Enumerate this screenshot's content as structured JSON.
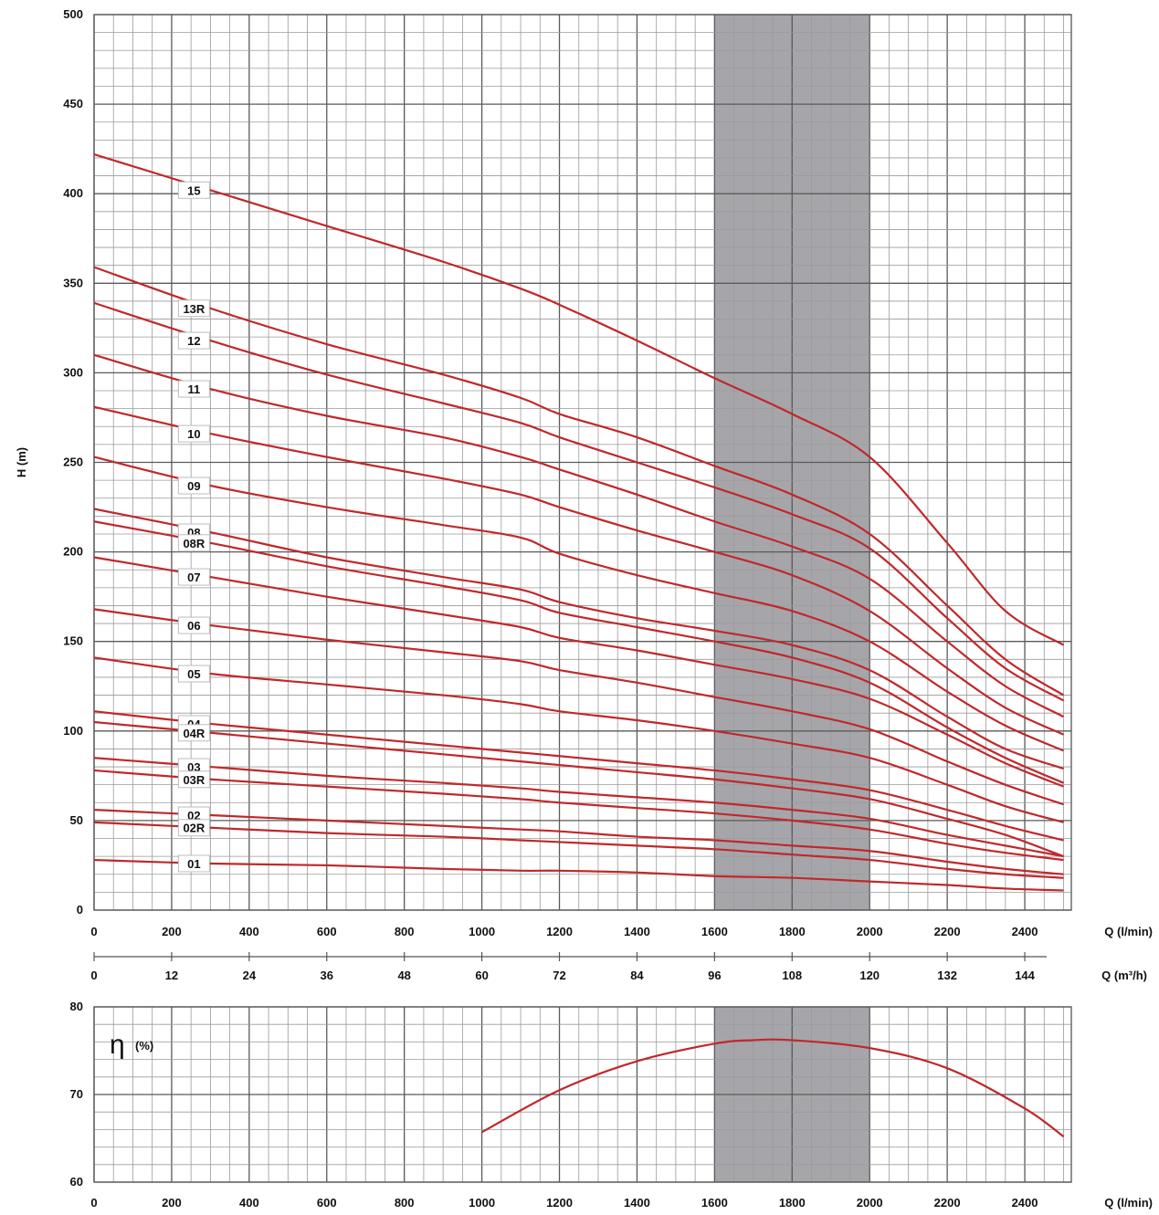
{
  "chart_data": [
    {
      "type": "line",
      "title": "",
      "xlabel": "Q (l/min)",
      "ylabel": "H (m)",
      "xlim": [
        0,
        2520
      ],
      "ylim": [
        0,
        500
      ],
      "grid": true,
      "x_ticks": [
        "0",
        "200",
        "400",
        "600",
        "800",
        "1000",
        "1200",
        "1400",
        "1600",
        "1800",
        "2000",
        "2200",
        "2400"
      ],
      "y_ticks": [
        "0",
        "50",
        "100",
        "150",
        "200",
        "250",
        "300",
        "350",
        "400",
        "450",
        "500"
      ],
      "secondary_x_label": "Q (m³/h)",
      "secondary_x_ticks": [
        "0",
        "12",
        "24",
        "36",
        "48",
        "60",
        "72",
        "84",
        "96",
        "108",
        "120",
        "132",
        "144"
      ],
      "highlight_range": [
        1600,
        2000
      ],
      "series_color": "#c0282b",
      "highlight_color": "#a6a6aa",
      "series": [
        {
          "name": "15",
          "points": [
            [
              0,
              422
            ],
            [
              300,
              402
            ],
            [
              600,
              382
            ],
            [
              900,
              362
            ],
            [
              1100,
              347
            ],
            [
              1200,
              338
            ],
            [
              1400,
              318
            ],
            [
              1600,
              297
            ],
            [
              1800,
              277
            ],
            [
              2000,
              253
            ],
            [
              2200,
              205
            ],
            [
              2350,
              167
            ],
            [
              2500,
              148
            ]
          ]
        },
        {
          "name": "13R",
          "points": [
            [
              0,
              359
            ],
            [
              300,
              336
            ],
            [
              600,
              316
            ],
            [
              900,
              299
            ],
            [
              1100,
              286
            ],
            [
              1200,
              277
            ],
            [
              1400,
              264
            ],
            [
              1600,
              248
            ],
            [
              1800,
              232
            ],
            [
              2000,
              210
            ],
            [
              2200,
              170
            ],
            [
              2350,
              140
            ],
            [
              2500,
              120
            ]
          ]
        },
        {
          "name": "12",
          "points": [
            [
              0,
              339
            ],
            [
              300,
              318
            ],
            [
              600,
              299
            ],
            [
              900,
              283
            ],
            [
              1100,
              272
            ],
            [
              1200,
              264
            ],
            [
              1400,
              250
            ],
            [
              1600,
              236
            ],
            [
              1800,
              221
            ],
            [
              2000,
              202
            ],
            [
              2200,
              163
            ],
            [
              2350,
              135
            ],
            [
              2500,
              117
            ]
          ]
        },
        {
          "name": "11",
          "points": [
            [
              0,
              310
            ],
            [
              300,
              291
            ],
            [
              600,
              276
            ],
            [
              900,
              264
            ],
            [
              1100,
              253
            ],
            [
              1200,
              246
            ],
            [
              1400,
              232
            ],
            [
              1600,
              217
            ],
            [
              1800,
              203
            ],
            [
              2000,
              185
            ],
            [
              2200,
              150
            ],
            [
              2350,
              125
            ],
            [
              2500,
              108
            ]
          ]
        },
        {
          "name": "10",
          "points": [
            [
              0,
              281
            ],
            [
              300,
              266
            ],
            [
              600,
              253
            ],
            [
              900,
              241
            ],
            [
              1100,
              232
            ],
            [
              1200,
              225
            ],
            [
              1400,
              212
            ],
            [
              1600,
              200
            ],
            [
              1800,
              187
            ],
            [
              2000,
              167
            ],
            [
              2200,
              135
            ],
            [
              2350,
              113
            ],
            [
              2500,
              98
            ]
          ]
        },
        {
          "name": "09",
          "points": [
            [
              0,
              253
            ],
            [
              300,
              237
            ],
            [
              600,
              225
            ],
            [
              900,
              215
            ],
            [
              1100,
              208
            ],
            [
              1200,
              199
            ],
            [
              1400,
              187
            ],
            [
              1600,
              177
            ],
            [
              1800,
              167
            ],
            [
              2000,
              150
            ],
            [
              2200,
              122
            ],
            [
              2350,
              103
            ],
            [
              2500,
              89
            ]
          ]
        },
        {
          "name": "08",
          "points": [
            [
              0,
              224
            ],
            [
              300,
              211
            ],
            [
              600,
              197
            ],
            [
              900,
              186
            ],
            [
              1100,
              179
            ],
            [
              1200,
              172
            ],
            [
              1400,
              163
            ],
            [
              1600,
              156
            ],
            [
              1800,
              148
            ],
            [
              2000,
              134
            ],
            [
              2200,
              108
            ],
            [
              2350,
              90
            ],
            [
              2500,
              79
            ]
          ]
        },
        {
          "name": "08R",
          "points": [
            [
              0,
              217
            ],
            [
              300,
              205
            ],
            [
              600,
              192
            ],
            [
              900,
              181
            ],
            [
              1100,
              173
            ],
            [
              1200,
              166
            ],
            [
              1400,
              158
            ],
            [
              1600,
              150
            ],
            [
              1800,
              141
            ],
            [
              2000,
              127
            ],
            [
              2200,
              102
            ],
            [
              2350,
              85
            ],
            [
              2500,
              71
            ]
          ]
        },
        {
          "name": "07",
          "points": [
            [
              0,
              197
            ],
            [
              300,
              186
            ],
            [
              600,
              175
            ],
            [
              900,
              165
            ],
            [
              1100,
              158
            ],
            [
              1200,
              152
            ],
            [
              1400,
              145
            ],
            [
              1600,
              137
            ],
            [
              1800,
              129
            ],
            [
              2000,
              118
            ],
            [
              2200,
              98
            ],
            [
              2350,
              82
            ],
            [
              2500,
              69
            ]
          ]
        },
        {
          "name": "06",
          "points": [
            [
              0,
              168
            ],
            [
              300,
              159
            ],
            [
              600,
              151
            ],
            [
              900,
              144
            ],
            [
              1100,
              139
            ],
            [
              1200,
              134
            ],
            [
              1400,
              127
            ],
            [
              1600,
              119
            ],
            [
              1800,
              111
            ],
            [
              2000,
              101
            ],
            [
              2200,
              83
            ],
            [
              2350,
              70
            ],
            [
              2500,
              59
            ]
          ]
        },
        {
          "name": "05",
          "points": [
            [
              0,
              141
            ],
            [
              300,
              132
            ],
            [
              600,
              126
            ],
            [
              900,
              120
            ],
            [
              1100,
              115
            ],
            [
              1200,
              111
            ],
            [
              1400,
              106
            ],
            [
              1600,
              100
            ],
            [
              1800,
              93
            ],
            [
              2000,
              85
            ],
            [
              2200,
              70
            ],
            [
              2350,
              58
            ],
            [
              2500,
              49
            ]
          ]
        },
        {
          "name": "04",
          "points": [
            [
              0,
              111
            ],
            [
              300,
              104
            ],
            [
              600,
              98
            ],
            [
              900,
              92
            ],
            [
              1100,
              88
            ],
            [
              1200,
              86
            ],
            [
              1400,
              82
            ],
            [
              1600,
              78
            ],
            [
              1800,
              73
            ],
            [
              2000,
              67
            ],
            [
              2200,
              56
            ],
            [
              2350,
              47
            ],
            [
              2500,
              39
            ]
          ]
        },
        {
          "name": "04R",
          "points": [
            [
              0,
              105
            ],
            [
              300,
              99
            ],
            [
              600,
              93
            ],
            [
              900,
              87
            ],
            [
              1100,
              83
            ],
            [
              1200,
              81
            ],
            [
              1400,
              77
            ],
            [
              1600,
              73
            ],
            [
              1800,
              68
            ],
            [
              2000,
              62
            ],
            [
              2200,
              51
            ],
            [
              2350,
              42
            ],
            [
              2500,
              30
            ]
          ]
        },
        {
          "name": "03",
          "points": [
            [
              0,
              85
            ],
            [
              300,
              80
            ],
            [
              600,
              75
            ],
            [
              900,
              71
            ],
            [
              1100,
              68
            ],
            [
              1200,
              66
            ],
            [
              1400,
              63
            ],
            [
              1600,
              60
            ],
            [
              1800,
              56
            ],
            [
              2000,
              51
            ],
            [
              2200,
              42
            ],
            [
              2350,
              36
            ],
            [
              2500,
              30
            ]
          ]
        },
        {
          "name": "03R",
          "points": [
            [
              0,
              78
            ],
            [
              300,
              73
            ],
            [
              600,
              69
            ],
            [
              900,
              65
            ],
            [
              1100,
              62
            ],
            [
              1200,
              60
            ],
            [
              1400,
              57
            ],
            [
              1600,
              54
            ],
            [
              1800,
              50
            ],
            [
              2000,
              45
            ],
            [
              2200,
              37
            ],
            [
              2350,
              32
            ],
            [
              2500,
              28
            ]
          ]
        },
        {
          "name": "02",
          "points": [
            [
              0,
              56
            ],
            [
              300,
              53
            ],
            [
              600,
              50
            ],
            [
              900,
              47
            ],
            [
              1100,
              45
            ],
            [
              1200,
              44
            ],
            [
              1400,
              41
            ],
            [
              1600,
              39
            ],
            [
              1800,
              36
            ],
            [
              2000,
              33
            ],
            [
              2200,
              27
            ],
            [
              2350,
              23
            ],
            [
              2500,
              20
            ]
          ]
        },
        {
          "name": "02R",
          "points": [
            [
              0,
              49
            ],
            [
              300,
              46
            ],
            [
              600,
              43
            ],
            [
              900,
              41
            ],
            [
              1100,
              39
            ],
            [
              1200,
              38
            ],
            [
              1400,
              36
            ],
            [
              1600,
              34
            ],
            [
              1800,
              31
            ],
            [
              2000,
              28
            ],
            [
              2200,
              23
            ],
            [
              2350,
              20
            ],
            [
              2500,
              18
            ]
          ]
        },
        {
          "name": "01",
          "points": [
            [
              0,
              28
            ],
            [
              300,
              26
            ],
            [
              600,
              25
            ],
            [
              900,
              23
            ],
            [
              1100,
              22
            ],
            [
              1200,
              22
            ],
            [
              1400,
              21
            ],
            [
              1600,
              19
            ],
            [
              1800,
              18
            ],
            [
              2000,
              16
            ],
            [
              2200,
              14
            ],
            [
              2350,
              12
            ],
            [
              2500,
              11
            ]
          ]
        }
      ]
    },
    {
      "type": "line",
      "title": "",
      "xlabel": "Q (l/min)",
      "ylabel_symbol": "η",
      "ylabel_unit": "(%)",
      "xlim": [
        0,
        2520
      ],
      "ylim": [
        60,
        80
      ],
      "grid": true,
      "x_ticks": [
        "0",
        "200",
        "400",
        "600",
        "800",
        "1000",
        "1200",
        "1400",
        "1600",
        "1800",
        "2000",
        "2200",
        "2400"
      ],
      "y_ticks": [
        "60",
        "70",
        "80"
      ],
      "highlight_range": [
        1600,
        2000
      ],
      "series": [
        {
          "points": [
            [
              1000,
              65.7
            ],
            [
              1200,
              70.5
            ],
            [
              1400,
              73.8
            ],
            [
              1600,
              75.8
            ],
            [
              1700,
              76.2
            ],
            [
              1800,
              76.2
            ],
            [
              2000,
              75.3
            ],
            [
              2200,
              73.0
            ],
            [
              2400,
              68.4
            ],
            [
              2500,
              65.2
            ]
          ]
        }
      ]
    }
  ]
}
